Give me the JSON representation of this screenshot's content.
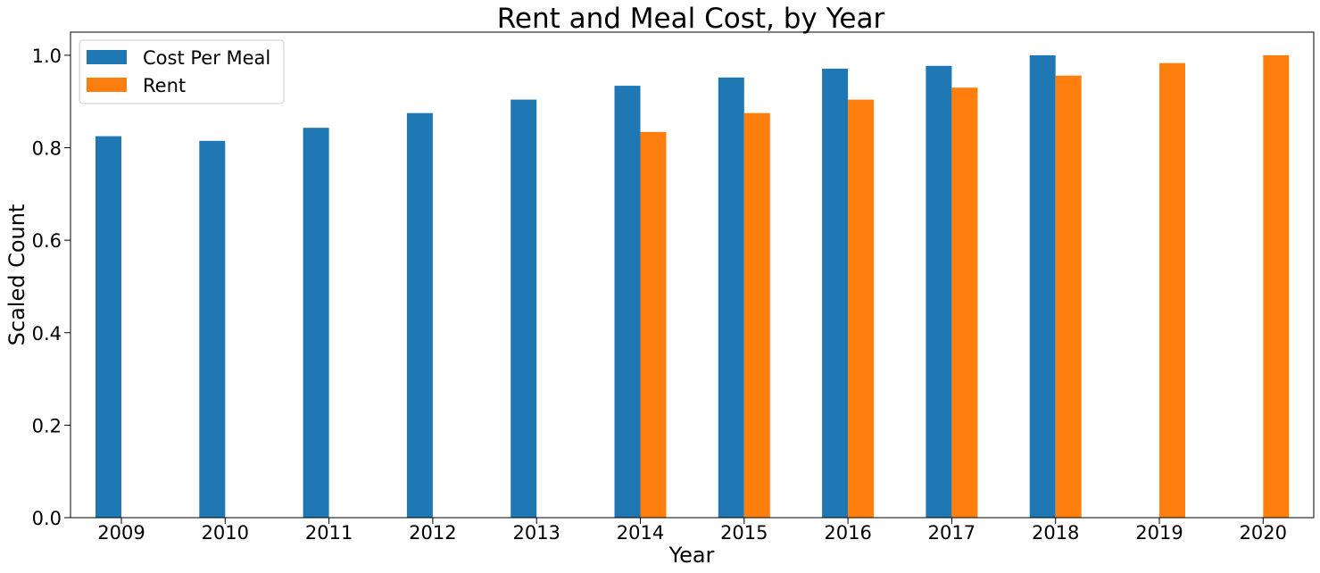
{
  "chart_data": {
    "type": "bar",
    "title": "Rent and Meal Cost, by Year",
    "xlabel": "Year",
    "ylabel": "Scaled Count",
    "categories": [
      "2009",
      "2010",
      "2011",
      "2012",
      "2013",
      "2014",
      "2015",
      "2016",
      "2017",
      "2018",
      "2019",
      "2020"
    ],
    "series": [
      {
        "name": "Cost Per Meal",
        "color": "#1f77b4",
        "values": [
          0.825,
          0.815,
          0.843,
          0.875,
          0.904,
          0.934,
          0.952,
          0.971,
          0.977,
          1.0,
          null,
          null
        ]
      },
      {
        "name": "Rent",
        "color": "#ff7f0e",
        "values": [
          null,
          null,
          null,
          null,
          null,
          0.834,
          0.875,
          0.904,
          0.93,
          0.956,
          0.983,
          1.0
        ]
      }
    ],
    "ylim": [
      0,
      1.05
    ],
    "yticks": [
      "0.0",
      "0.2",
      "0.4",
      "0.6",
      "0.8",
      "1.0"
    ],
    "grid": false,
    "legend": "upper-left"
  }
}
